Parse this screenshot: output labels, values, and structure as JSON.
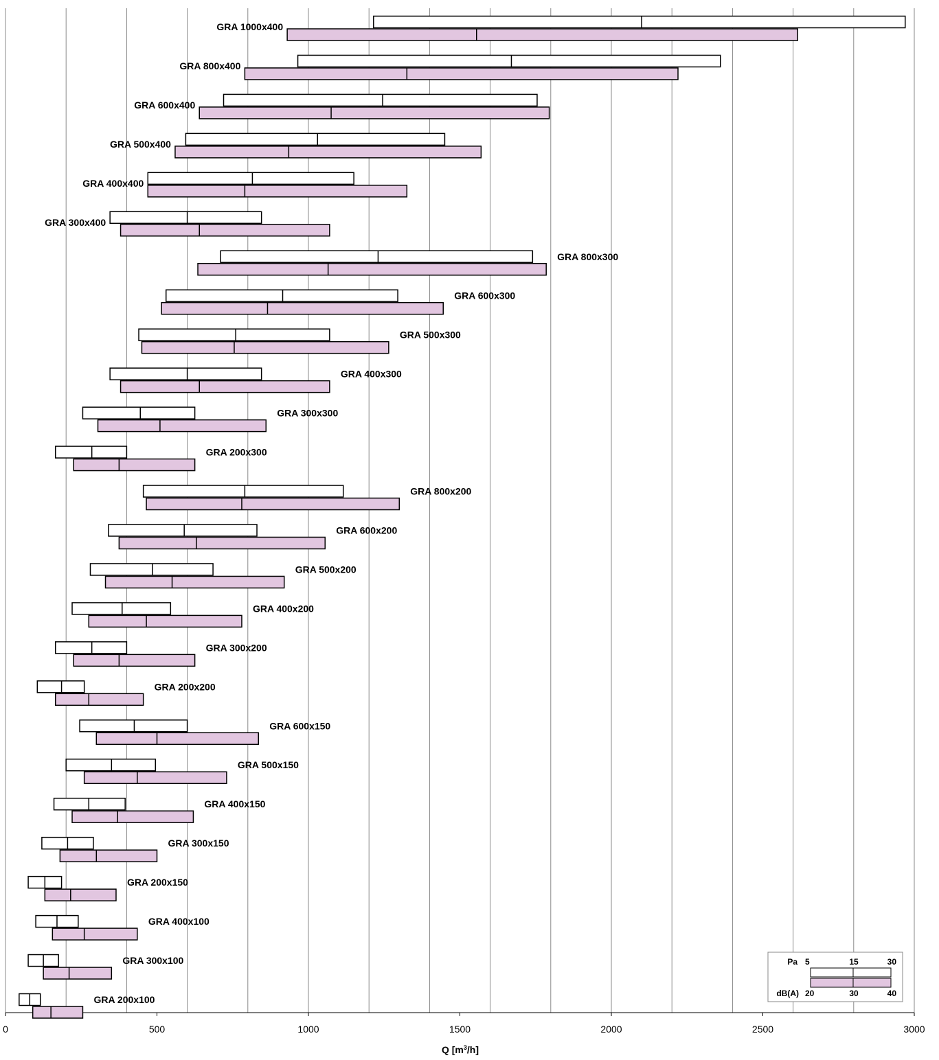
{
  "chart_data": {
    "type": "range-bar",
    "xlabel": "Q [m",
    "xlabel_sup": "3",
    "xlabel_tail": "/h]",
    "xlim": [
      0,
      3000
    ],
    "xticks": [
      0,
      500,
      1000,
      1500,
      2000,
      2500,
      3000
    ],
    "x_gridline_step": 200,
    "grid": true,
    "colors": {
      "pa_fill": "#ffffff",
      "db_fill": "#e2c6e0",
      "outline": "#000000",
      "grid": "#888888"
    },
    "legend": {
      "position": "bottom-right",
      "pa_label": "Pa",
      "pa_values": [
        "5",
        "15",
        "30"
      ],
      "db_label": "dB(A)",
      "db_values": [
        "20",
        "30",
        "40"
      ]
    },
    "label_side_note": "grilles with height 400 labelled left of bars, others right",
    "grilles": [
      {
        "name": "GRA 1000x400",
        "pa": [
          1215,
          2100,
          2970
        ],
        "db": [
          930,
          1555,
          2615
        ]
      },
      {
        "name": "GRA 800x400",
        "pa": [
          965,
          1670,
          2360
        ],
        "db": [
          790,
          1325,
          2220
        ]
      },
      {
        "name": "GRA 600x400",
        "pa": [
          720,
          1245,
          1755
        ],
        "db": [
          640,
          1075,
          1795
        ]
      },
      {
        "name": "GRA 500x400",
        "pa": [
          595,
          1030,
          1450
        ],
        "db": [
          560,
          935,
          1570
        ]
      },
      {
        "name": "GRA 400x400",
        "pa": [
          470,
          815,
          1150
        ],
        "db": [
          470,
          790,
          1325
        ]
      },
      {
        "name": "GRA 300x400",
        "pa": [
          345,
          600,
          845
        ],
        "db": [
          380,
          640,
          1070
        ]
      },
      {
        "name": "GRA 800x300",
        "pa": [
          710,
          1230,
          1740
        ],
        "db": [
          635,
          1065,
          1785
        ]
      },
      {
        "name": "GRA 600x300",
        "pa": [
          530,
          915,
          1295
        ],
        "db": [
          515,
          865,
          1445
        ]
      },
      {
        "name": "GRA 500x300",
        "pa": [
          440,
          760,
          1070
        ],
        "db": [
          450,
          755,
          1265
        ]
      },
      {
        "name": "GRA 400x300",
        "pa": [
          345,
          600,
          845
        ],
        "db": [
          380,
          640,
          1070
        ]
      },
      {
        "name": "GRA 300x300",
        "pa": [
          255,
          445,
          625
        ],
        "db": [
          305,
          510,
          860
        ]
      },
      {
        "name": "GRA 200x300",
        "pa": [
          165,
          285,
          400
        ],
        "db": [
          225,
          375,
          625
        ]
      },
      {
        "name": "GRA 800x200",
        "pa": [
          455,
          790,
          1115
        ],
        "db": [
          465,
          780,
          1300
        ]
      },
      {
        "name": "GRA 600x200",
        "pa": [
          340,
          590,
          830
        ],
        "db": [
          375,
          630,
          1055
        ]
      },
      {
        "name": "GRA 500x200",
        "pa": [
          280,
          485,
          685
        ],
        "db": [
          330,
          550,
          920
        ]
      },
      {
        "name": "GRA 400x200",
        "pa": [
          220,
          385,
          545
        ],
        "db": [
          275,
          465,
          780
        ]
      },
      {
        "name": "GRA 300x200",
        "pa": [
          165,
          285,
          400
        ],
        "db": [
          225,
          375,
          625
        ]
      },
      {
        "name": "GRA 200x200",
        "pa": [
          105,
          185,
          260
        ],
        "db": [
          165,
          275,
          455
        ]
      },
      {
        "name": "GRA 600x150",
        "pa": [
          245,
          425,
          600
        ],
        "db": [
          300,
          500,
          835
        ]
      },
      {
        "name": "GRA 500x150",
        "pa": [
          200,
          350,
          495
        ],
        "db": [
          260,
          435,
          730
        ]
      },
      {
        "name": "GRA 400x150",
        "pa": [
          160,
          275,
          395
        ],
        "db": [
          220,
          370,
          620
        ]
      },
      {
        "name": "GRA 300x150",
        "pa": [
          120,
          205,
          290
        ],
        "db": [
          180,
          300,
          500
        ]
      },
      {
        "name": "GRA 200x150",
        "pa": [
          75,
          130,
          185
        ],
        "db": [
          130,
          215,
          365
        ]
      },
      {
        "name": "GRA 400x100",
        "pa": [
          100,
          170,
          240
        ],
        "db": [
          155,
          260,
          435
        ]
      },
      {
        "name": "GRA 300x100",
        "pa": [
          75,
          125,
          175
        ],
        "db": [
          125,
          210,
          350
        ]
      },
      {
        "name": "GRA 200x100",
        "pa": [
          45,
          80,
          115
        ],
        "db": [
          90,
          150,
          255
        ]
      }
    ]
  }
}
